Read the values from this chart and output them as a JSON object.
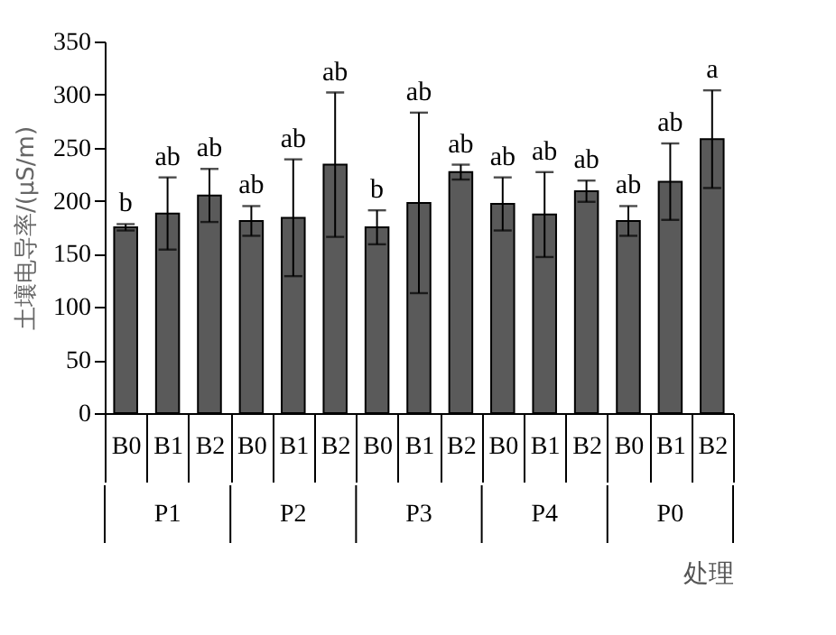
{
  "chart_data": {
    "type": "bar",
    "ylabel": "土壤电导率/(μS/m)",
    "xlabel": "处理",
    "categories": [
      "B0",
      "B1",
      "B2",
      "B0",
      "B1",
      "B2",
      "B0",
      "B1",
      "B2",
      "B0",
      "B1",
      "B2",
      "B0",
      "B1",
      "B2"
    ],
    "values": [
      175,
      188,
      205,
      181,
      184,
      234,
      175,
      198,
      227,
      197,
      187,
      209,
      181,
      218,
      258
    ],
    "errors": [
      3,
      34,
      25,
      14,
      55,
      68,
      16,
      85,
      7,
      25,
      40,
      10,
      14,
      36,
      46
    ],
    "color": "#5a5a5a",
    "ylim": [
      0,
      350
    ],
    "yticks": [
      0,
      50,
      100,
      150,
      200,
      250,
      300,
      350
    ],
    "annotations": [
      "b",
      "ab",
      "ab",
      "ab",
      "ab",
      "ab",
      "b",
      "ab",
      "ab",
      "ab",
      "ab",
      "ab",
      "ab",
      "ab",
      "a",
      "P1",
      "P2",
      "P3",
      "P4",
      "P0"
    ],
    "grid": false
  }
}
